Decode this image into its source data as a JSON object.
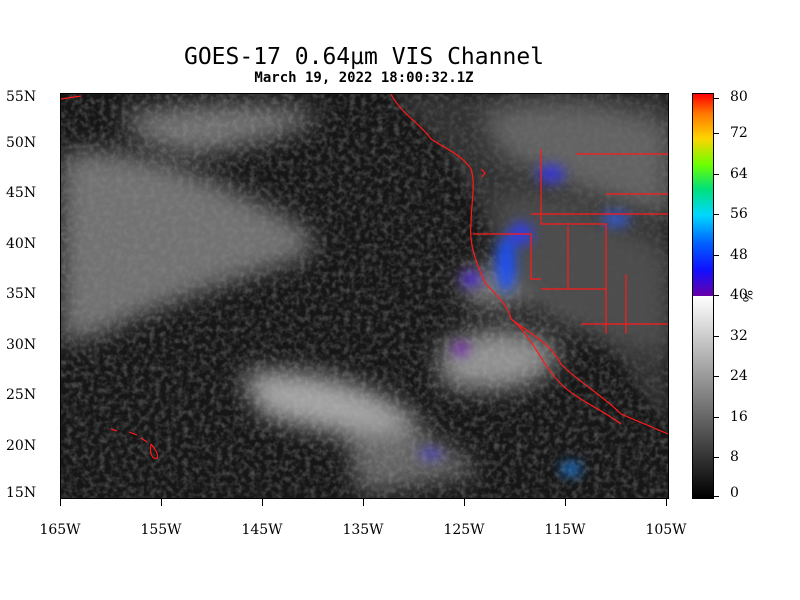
{
  "title": "GOES-17  0.64µm VIS Channel",
  "subtitle": "March 19,  2022 18:00:32.1Z",
  "lat_labels": [
    "55N",
    "50N",
    "45N",
    "40N",
    "35N",
    "30N",
    "25N",
    "20N",
    "15N"
  ],
  "lon_labels": [
    "165W",
    "155W",
    "145W",
    "135W",
    "125W",
    "115W",
    "105W"
  ],
  "colorbar": {
    "labels": [
      "80",
      "72",
      "64",
      "56",
      "48",
      "40",
      "32",
      "24",
      "16",
      "8",
      "0"
    ],
    "unit": "%",
    "min": 0,
    "max": 80
  },
  "colors": {
    "coast": "#ff1a1a",
    "ocean": "#151515"
  }
}
